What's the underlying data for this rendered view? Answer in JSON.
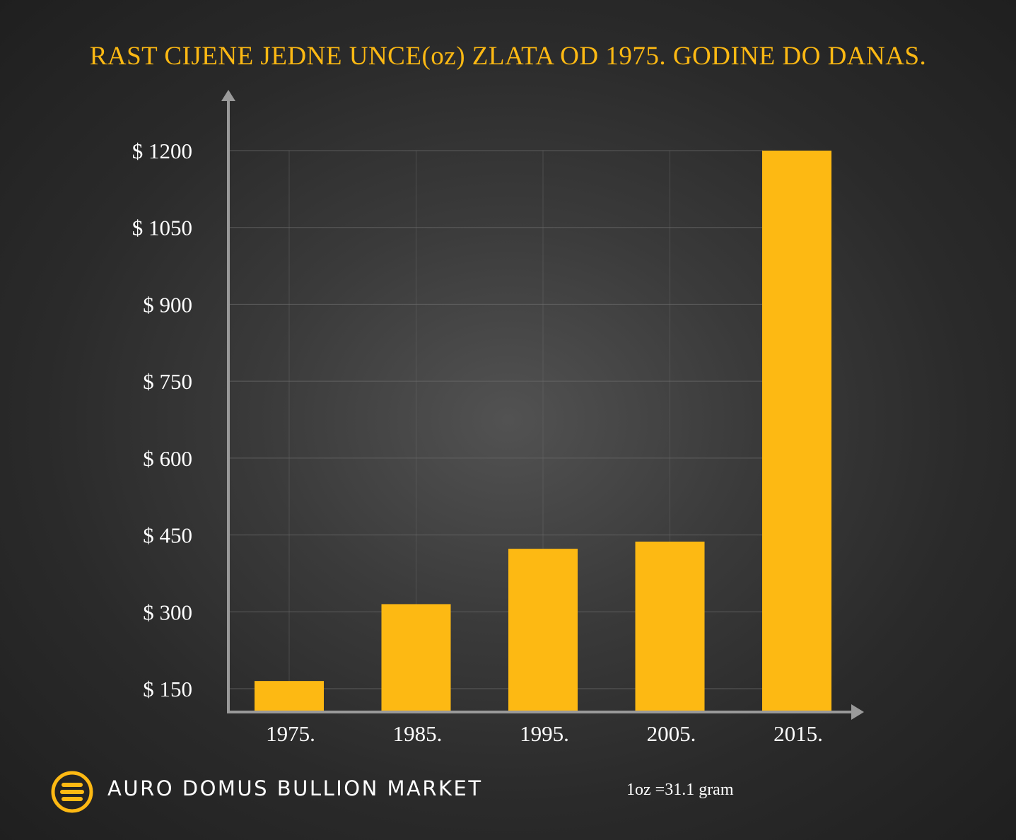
{
  "colors": {
    "accent": "#fdb913",
    "text": "#ffffff",
    "axis": "#9a9a9a",
    "grid": "#6a6a6a"
  },
  "footer": {
    "brand": "AURO DOMUS BULLION MARKET",
    "note": "1oz =31.1 gram",
    "logo_icon": "gold-bars-logo-icon"
  },
  "chart_data": {
    "type": "bar",
    "title": "RAST CIJENE JEDNE UNCE(oz) ZLATA OD 1975. GODINE DO DANAS.",
    "xlabel": "",
    "ylabel": "",
    "categories": [
      "1975.",
      "1985.",
      "1995.",
      "2005.",
      "2015."
    ],
    "values": [
      165,
      315,
      423,
      437,
      1200
    ],
    "y_ticks": [
      150,
      300,
      450,
      600,
      750,
      900,
      1050,
      1200
    ],
    "y_tick_labels": [
      "$ 150",
      "$ 300",
      "$ 450",
      "$ 600",
      "$ 750",
      "$ 900",
      "$ 1050",
      "$ 1200"
    ],
    "ylim": [
      95,
      1200
    ],
    "grid": true,
    "legend": "none"
  }
}
